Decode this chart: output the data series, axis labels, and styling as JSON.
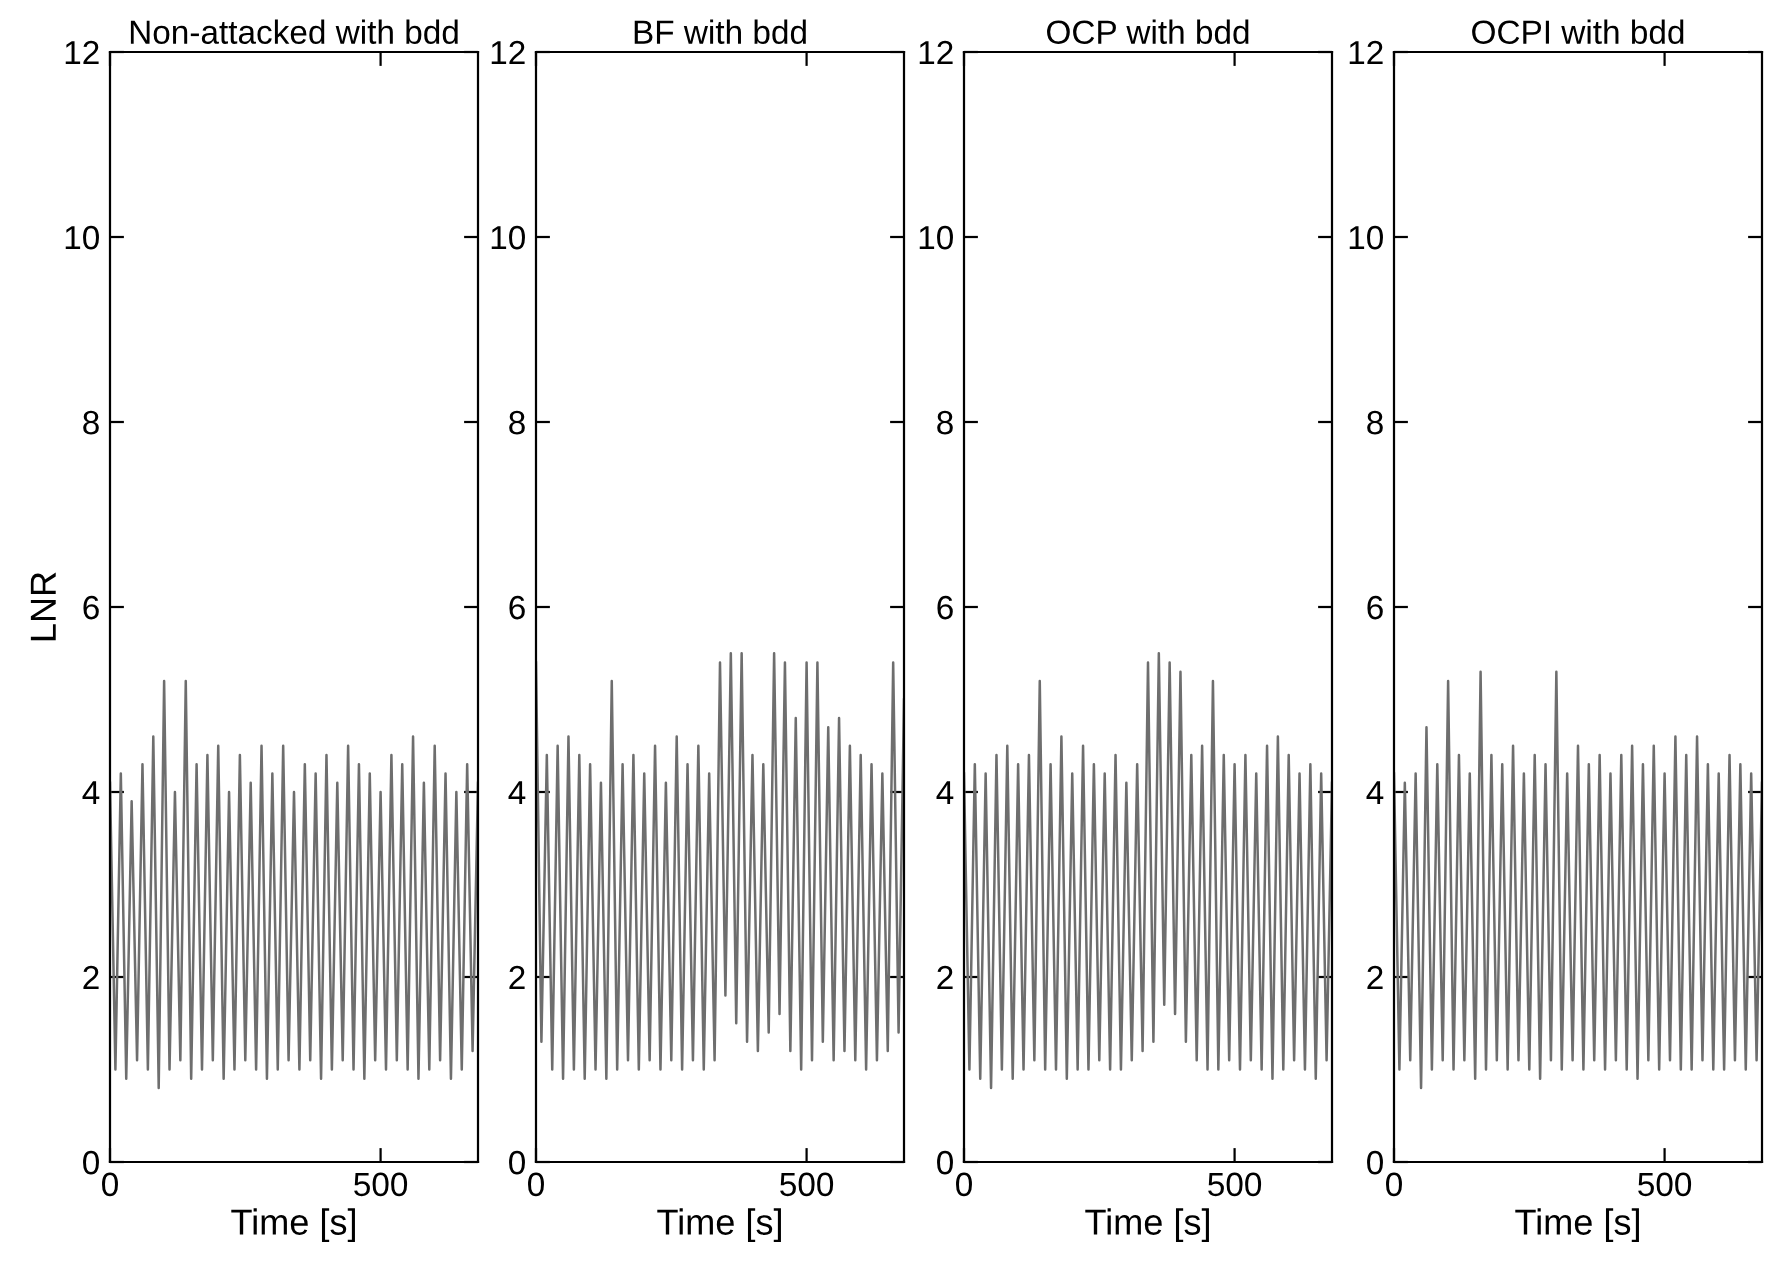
{
  "chart_data": [
    {
      "type": "line",
      "title": "Non-attacked with bdd",
      "xlabel": "Time [s]",
      "ylabel": "LNR",
      "xlim": [
        0,
        680
      ],
      "ylim": [
        0,
        12
      ],
      "xticks": [
        0,
        500
      ],
      "yticks": [
        0,
        2,
        4,
        6,
        8,
        10,
        12
      ],
      "x": [
        0,
        10,
        20,
        30,
        40,
        50,
        60,
        70,
        80,
        90,
        100,
        110,
        120,
        130,
        140,
        150,
        160,
        170,
        180,
        190,
        200,
        210,
        220,
        230,
        240,
        250,
        260,
        270,
        280,
        290,
        300,
        310,
        320,
        330,
        340,
        350,
        360,
        370,
        380,
        390,
        400,
        410,
        420,
        430,
        440,
        450,
        460,
        470,
        480,
        490,
        500,
        510,
        520,
        530,
        540,
        550,
        560,
        570,
        580,
        590,
        600,
        610,
        620,
        630,
        640,
        650,
        660,
        670,
        680
      ],
      "series": [
        {
          "color": "#6e6e6e",
          "values": [
            4.1,
            1.0,
            4.2,
            0.9,
            3.9,
            1.1,
            4.3,
            1.0,
            4.6,
            0.8,
            5.2,
            1.0,
            4.0,
            1.1,
            5.2,
            0.9,
            4.3,
            1.0,
            4.4,
            1.1,
            4.5,
            0.9,
            4.0,
            1.0,
            4.4,
            1.1,
            4.1,
            1.0,
            4.5,
            0.9,
            4.2,
            1.0,
            4.5,
            1.1,
            4.0,
            1.0,
            4.3,
            1.1,
            4.2,
            0.9,
            4.4,
            1.0,
            4.1,
            1.1,
            4.5,
            1.0,
            4.3,
            0.9,
            4.2,
            1.1,
            4.0,
            1.0,
            4.4,
            1.1,
            4.3,
            1.0,
            4.6,
            0.9,
            4.1,
            1.0,
            4.5,
            1.1,
            4.2,
            0.9,
            4.0,
            1.0,
            4.3,
            1.2,
            4.1
          ]
        }
      ]
    },
    {
      "type": "line",
      "title": "BF with bdd",
      "xlabel": "Time [s]",
      "xlim": [
        0,
        680
      ],
      "ylim": [
        0,
        12
      ],
      "xticks": [
        0,
        500
      ],
      "yticks": [
        0,
        2,
        4,
        6,
        8,
        10,
        12
      ],
      "x": [
        0,
        10,
        20,
        30,
        40,
        50,
        60,
        70,
        80,
        90,
        100,
        110,
        120,
        130,
        140,
        150,
        160,
        170,
        180,
        190,
        200,
        210,
        220,
        230,
        240,
        250,
        260,
        270,
        280,
        290,
        300,
        310,
        320,
        330,
        340,
        350,
        360,
        370,
        380,
        390,
        400,
        410,
        420,
        430,
        440,
        450,
        460,
        470,
        480,
        490,
        500,
        510,
        520,
        530,
        540,
        550,
        560,
        570,
        580,
        590,
        600,
        610,
        620,
        630,
        640,
        650,
        660,
        670,
        680
      ],
      "series": [
        {
          "color": "#6e6e6e",
          "values": [
            5.4,
            1.3,
            4.4,
            1.0,
            4.5,
            0.9,
            4.6,
            1.0,
            4.4,
            0.9,
            4.3,
            1.0,
            4.1,
            0.9,
            5.2,
            1.0,
            4.3,
            1.1,
            4.4,
            1.0,
            4.2,
            1.1,
            4.5,
            1.0,
            4.1,
            1.1,
            4.6,
            1.0,
            4.3,
            1.1,
            4.5,
            1.0,
            4.2,
            1.1,
            5.4,
            1.8,
            5.5,
            1.5,
            5.5,
            1.3,
            4.4,
            1.2,
            4.3,
            1.4,
            5.5,
            1.6,
            5.4,
            1.2,
            4.8,
            1.0,
            5.4,
            1.1,
            5.4,
            1.3,
            4.7,
            1.1,
            4.8,
            1.2,
            4.5,
            1.1,
            4.4,
            1.0,
            4.3,
            1.1,
            4.2,
            1.2,
            5.4,
            1.4,
            5.0
          ]
        }
      ]
    },
    {
      "type": "line",
      "title": "OCP with bdd",
      "xlabel": "Time [s]",
      "xlim": [
        0,
        680
      ],
      "ylim": [
        0,
        12
      ],
      "xticks": [
        0,
        500
      ],
      "yticks": [
        0,
        2,
        4,
        6,
        8,
        10,
        12
      ],
      "x": [
        0,
        10,
        20,
        30,
        40,
        50,
        60,
        70,
        80,
        90,
        100,
        110,
        120,
        130,
        140,
        150,
        160,
        170,
        180,
        190,
        200,
        210,
        220,
        230,
        240,
        250,
        260,
        270,
        280,
        290,
        300,
        310,
        320,
        330,
        340,
        350,
        360,
        370,
        380,
        390,
        400,
        410,
        420,
        430,
        440,
        450,
        460,
        470,
        480,
        490,
        500,
        510,
        520,
        530,
        540,
        550,
        560,
        570,
        580,
        590,
        600,
        610,
        620,
        630,
        640,
        650,
        660,
        670,
        680
      ],
      "series": [
        {
          "color": "#6e6e6e",
          "values": [
            4.2,
            1.0,
            4.3,
            0.9,
            4.2,
            0.8,
            4.4,
            1.0,
            4.5,
            0.9,
            4.3,
            1.0,
            4.4,
            1.1,
            5.2,
            1.0,
            4.3,
            1.0,
            4.6,
            0.9,
            4.2,
            1.0,
            4.5,
            1.0,
            4.3,
            1.1,
            4.2,
            1.0,
            4.4,
            1.0,
            4.1,
            1.1,
            4.3,
            1.2,
            5.4,
            1.3,
            5.5,
            1.7,
            5.4,
            1.6,
            5.3,
            1.3,
            4.4,
            1.1,
            4.5,
            1.0,
            5.2,
            1.0,
            4.4,
            1.1,
            4.3,
            1.0,
            4.4,
            1.1,
            4.2,
            1.0,
            4.5,
            0.9,
            4.6,
            1.0,
            4.4,
            1.1,
            4.2,
            1.0,
            4.3,
            0.9,
            4.2,
            1.1,
            4.1
          ]
        }
      ]
    },
    {
      "type": "line",
      "title": "OCPI with bdd",
      "xlabel": "Time [s]",
      "xlim": [
        0,
        680
      ],
      "ylim": [
        0,
        12
      ],
      "xticks": [
        0,
        500
      ],
      "yticks": [
        0,
        2,
        4,
        6,
        8,
        10,
        12
      ],
      "x": [
        0,
        10,
        20,
        30,
        40,
        50,
        60,
        70,
        80,
        90,
        100,
        110,
        120,
        130,
        140,
        150,
        160,
        170,
        180,
        190,
        200,
        210,
        220,
        230,
        240,
        250,
        260,
        270,
        280,
        290,
        300,
        310,
        320,
        330,
        340,
        350,
        360,
        370,
        380,
        390,
        400,
        410,
        420,
        430,
        440,
        450,
        460,
        470,
        480,
        490,
        500,
        510,
        520,
        530,
        540,
        550,
        560,
        570,
        580,
        590,
        600,
        610,
        620,
        630,
        640,
        650,
        660,
        670,
        680
      ],
      "series": [
        {
          "color": "#6e6e6e",
          "values": [
            4.2,
            1.0,
            4.1,
            1.1,
            4.2,
            0.8,
            4.7,
            1.0,
            4.3,
            1.1,
            5.2,
            1.0,
            4.4,
            1.1,
            4.2,
            0.9,
            5.3,
            1.0,
            4.4,
            1.1,
            4.3,
            1.0,
            4.5,
            1.1,
            4.2,
            1.0,
            4.4,
            0.9,
            4.3,
            1.1,
            5.3,
            1.0,
            4.2,
            1.1,
            4.5,
            1.0,
            4.3,
            1.1,
            4.4,
            1.0,
            4.2,
            1.1,
            4.4,
            1.0,
            4.5,
            0.9,
            4.3,
            1.1,
            4.5,
            1.0,
            4.2,
            1.1,
            4.6,
            1.0,
            4.4,
            1.0,
            4.6,
            1.1,
            4.3,
            1.0,
            4.2,
            1.0,
            4.4,
            1.1,
            4.3,
            1.0,
            4.2,
            1.1,
            4.1
          ]
        }
      ]
    }
  ]
}
